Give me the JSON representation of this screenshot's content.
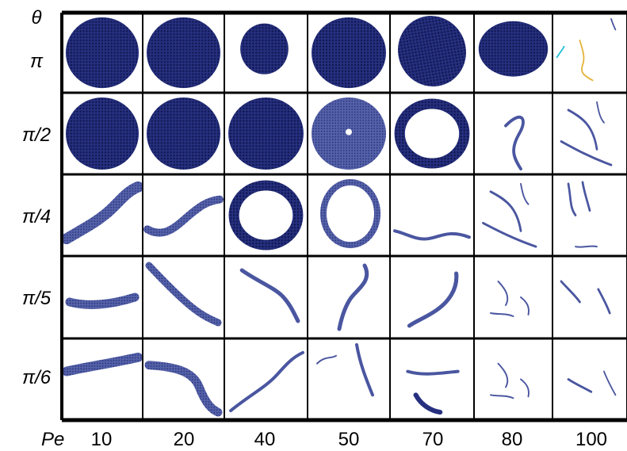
{
  "theta_label": "θ",
  "pe_label": "Pe",
  "row_labels": [
    "π",
    "π/2",
    "π/4",
    "π/5",
    "π/6"
  ],
  "pe_values": [
    "10",
    "20",
    "40",
    "50",
    "70",
    "80",
    "100"
  ],
  "colors": {
    "particle": "#1f2a7a",
    "particle_light": "#3a4aa0",
    "grid": "#000000",
    "accent_cyan": "#29c0d8",
    "accent_yellow": "#e3b33b",
    "accent_pink": "#c03080"
  },
  "cells": [
    [
      "cluster-round",
      "cluster-round",
      "cluster-small",
      "cluster-round",
      "cluster-oval",
      "cluster-wide",
      "strands-colored"
    ],
    [
      "cluster-round",
      "cluster-round",
      "cluster-round",
      "cluster-pore",
      "ring",
      "worm-s",
      "worms-few"
    ],
    [
      "band-diag",
      "band-wave",
      "ring",
      "ring-thin",
      "band-thin",
      "worms-few",
      "worms-many"
    ],
    [
      "band-flat",
      "band-desc",
      "worm-curve",
      "worm-s2",
      "worm-s3",
      "worms-sparse",
      "worms-sparse2"
    ],
    [
      "band-flat2",
      "band-bend",
      "worm-diag",
      "worms-two",
      "worms-split",
      "worms-sparse",
      "worms-sparse3"
    ]
  ]
}
